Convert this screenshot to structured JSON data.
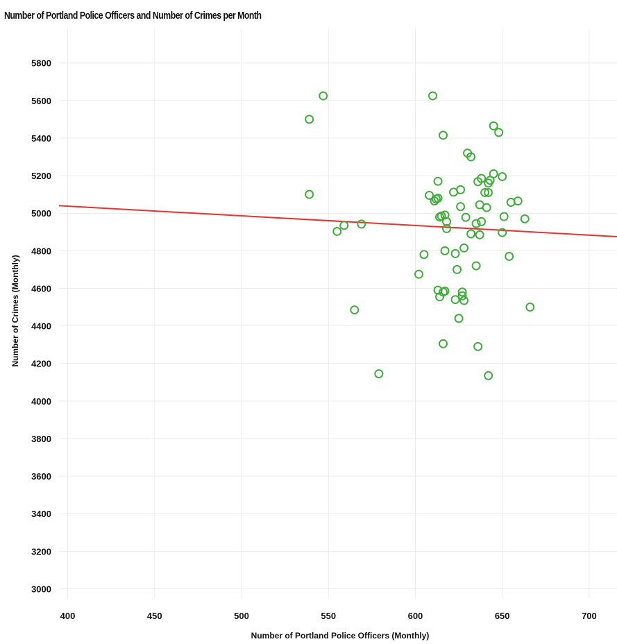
{
  "chart_data": {
    "type": "scatter",
    "title": "Number of Portland Police Officers and Number of Crimes per Month",
    "xlabel": "Number of Portland Police Officers (Monthly)",
    "ylabel": "Number of Crimes (Monthly)",
    "xlim": [
      395,
      716
    ],
    "ylim": [
      2950,
      5980
    ],
    "x_ticks": [
      400,
      450,
      500,
      550,
      600,
      650,
      700
    ],
    "y_ticks": [
      3000,
      3200,
      3400,
      3600,
      3800,
      4000,
      4200,
      4400,
      4600,
      4800,
      5000,
      5200,
      5400,
      5600,
      5800
    ],
    "grid": true,
    "marker_color": "#3fae3a",
    "trend_color": "#e8322d",
    "trend_line": {
      "x": [
        395,
        716
      ],
      "y": [
        5040,
        4875
      ]
    },
    "points": [
      {
        "x": 547,
        "y": 5625
      },
      {
        "x": 610,
        "y": 5625
      },
      {
        "x": 539,
        "y": 5500
      },
      {
        "x": 645,
        "y": 5465
      },
      {
        "x": 648,
        "y": 5430
      },
      {
        "x": 616,
        "y": 5415
      },
      {
        "x": 630,
        "y": 5320
      },
      {
        "x": 632,
        "y": 5300
      },
      {
        "x": 645,
        "y": 5210
      },
      {
        "x": 650,
        "y": 5195
      },
      {
        "x": 638,
        "y": 5185
      },
      {
        "x": 643,
        "y": 5175
      },
      {
        "x": 613,
        "y": 5170
      },
      {
        "x": 636,
        "y": 5168
      },
      {
        "x": 642,
        "y": 5160
      },
      {
        "x": 626,
        "y": 5125
      },
      {
        "x": 622,
        "y": 5112
      },
      {
        "x": 640,
        "y": 5110
      },
      {
        "x": 642,
        "y": 5110
      },
      {
        "x": 539,
        "y": 5100
      },
      {
        "x": 608,
        "y": 5095
      },
      {
        "x": 613,
        "y": 5080
      },
      {
        "x": 612,
        "y": 5075
      },
      {
        "x": 611,
        "y": 5065
      },
      {
        "x": 659,
        "y": 5065
      },
      {
        "x": 655,
        "y": 5058
      },
      {
        "x": 637,
        "y": 5045
      },
      {
        "x": 626,
        "y": 5035
      },
      {
        "x": 641,
        "y": 5030
      },
      {
        "x": 617,
        "y": 4990
      },
      {
        "x": 615,
        "y": 4985
      },
      {
        "x": 614,
        "y": 4980
      },
      {
        "x": 629,
        "y": 4978
      },
      {
        "x": 651,
        "y": 4982
      },
      {
        "x": 663,
        "y": 4970
      },
      {
        "x": 618,
        "y": 4955
      },
      {
        "x": 638,
        "y": 4955
      },
      {
        "x": 635,
        "y": 4945
      },
      {
        "x": 569,
        "y": 4942
      },
      {
        "x": 559,
        "y": 4935
      },
      {
        "x": 618,
        "y": 4918
      },
      {
        "x": 555,
        "y": 4903
      },
      {
        "x": 650,
        "y": 4897
      },
      {
        "x": 632,
        "y": 4890
      },
      {
        "x": 637,
        "y": 4885
      },
      {
        "x": 628,
        "y": 4815
      },
      {
        "x": 617,
        "y": 4800
      },
      {
        "x": 623,
        "y": 4785
      },
      {
        "x": 605,
        "y": 4780
      },
      {
        "x": 654,
        "y": 4770
      },
      {
        "x": 635,
        "y": 4720
      },
      {
        "x": 624,
        "y": 4700
      },
      {
        "x": 602,
        "y": 4675
      },
      {
        "x": 613,
        "y": 4590
      },
      {
        "x": 617,
        "y": 4585
      },
      {
        "x": 616,
        "y": 4580
      },
      {
        "x": 627,
        "y": 4580
      },
      {
        "x": 627,
        "y": 4560
      },
      {
        "x": 614,
        "y": 4555
      },
      {
        "x": 623,
        "y": 4540
      },
      {
        "x": 628,
        "y": 4535
      },
      {
        "x": 666,
        "y": 4500
      },
      {
        "x": 565,
        "y": 4485
      },
      {
        "x": 625,
        "y": 4440
      },
      {
        "x": 616,
        "y": 4305
      },
      {
        "x": 636,
        "y": 4290
      },
      {
        "x": 579,
        "y": 4145
      },
      {
        "x": 642,
        "y": 4135
      }
    ]
  }
}
